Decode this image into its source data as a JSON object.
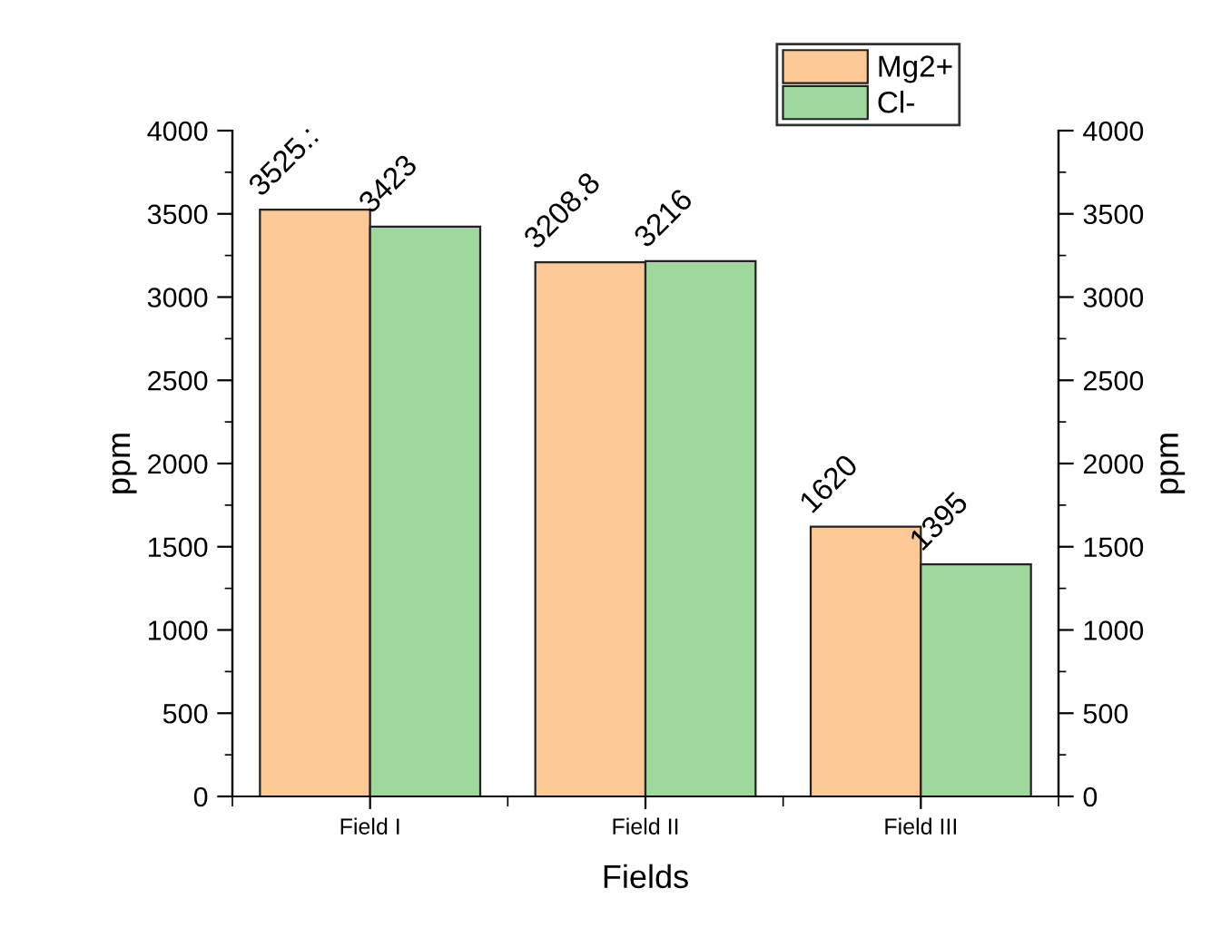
{
  "chart_data": {
    "type": "bar",
    "xlabel": "Fields",
    "ylabel": "ppm",
    "y2label": "ppm",
    "categories": [
      "Field I",
      "Field II",
      "Field III"
    ],
    "series": [
      {
        "name": "Mg2+",
        "color": "#fbc896",
        "values": [
          3525,
          3208.8,
          1620
        ],
        "value_labels": [
          "3525.:",
          "3208.8",
          "1620"
        ]
      },
      {
        "name": "Cl-",
        "color": "#9fd89d",
        "values": [
          3423,
          3216,
          1395
        ],
        "value_labels": [
          "3423",
          "3216",
          "1395"
        ]
      }
    ],
    "ylim": [
      0,
      4000
    ],
    "yticks": [
      0,
      500,
      1000,
      1500,
      2000,
      2500,
      3000,
      3500,
      4000
    ],
    "y2lim": [
      0,
      4000
    ],
    "y2ticks": [
      0,
      500,
      1000,
      1500,
      2000,
      2500,
      3000,
      3500,
      4000
    ],
    "grid": false,
    "legend": "top right"
  }
}
